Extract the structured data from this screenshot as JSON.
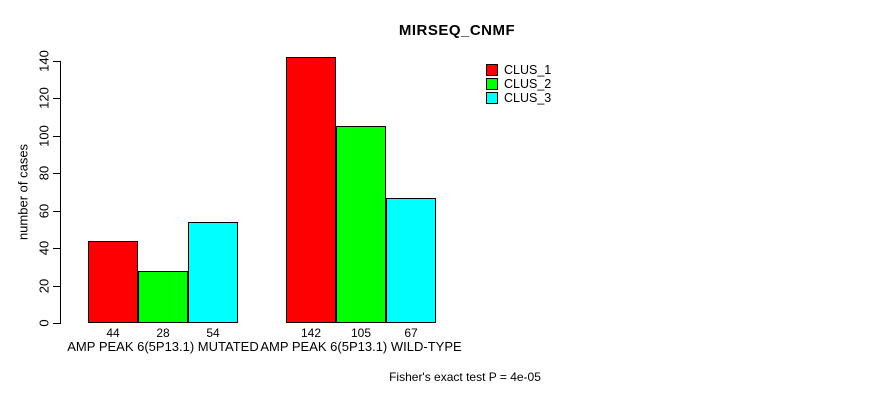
{
  "chart_data": {
    "type": "bar",
    "title": "MIRSEQ_CNMF",
    "ylabel": "number of cases",
    "xlabel": "",
    "annotation": "Fisher's exact test P = 4e-05",
    "categories": [
      "AMP PEAK 6(5P13.1) MUTATED",
      "AMP PEAK 6(5P13.1) WILD-TYPE"
    ],
    "series": [
      {
        "name": "CLUS_1",
        "color": "#ff0000",
        "values": [
          44,
          142
        ]
      },
      {
        "name": "CLUS_2",
        "color": "#00ff00",
        "values": [
          28,
          105
        ]
      },
      {
        "name": "CLUS_3",
        "color": "#00ffff",
        "values": [
          54,
          67
        ]
      }
    ],
    "ylim": [
      0,
      140
    ],
    "yticks": [
      0,
      20,
      40,
      60,
      80,
      100,
      120,
      140
    ],
    "bar_value_labels_shown": true,
    "grid": false,
    "legend_position": "top-right",
    "axis_color": "#000000",
    "bar_border_color": "#000000",
    "background_color": "#ffffff"
  }
}
